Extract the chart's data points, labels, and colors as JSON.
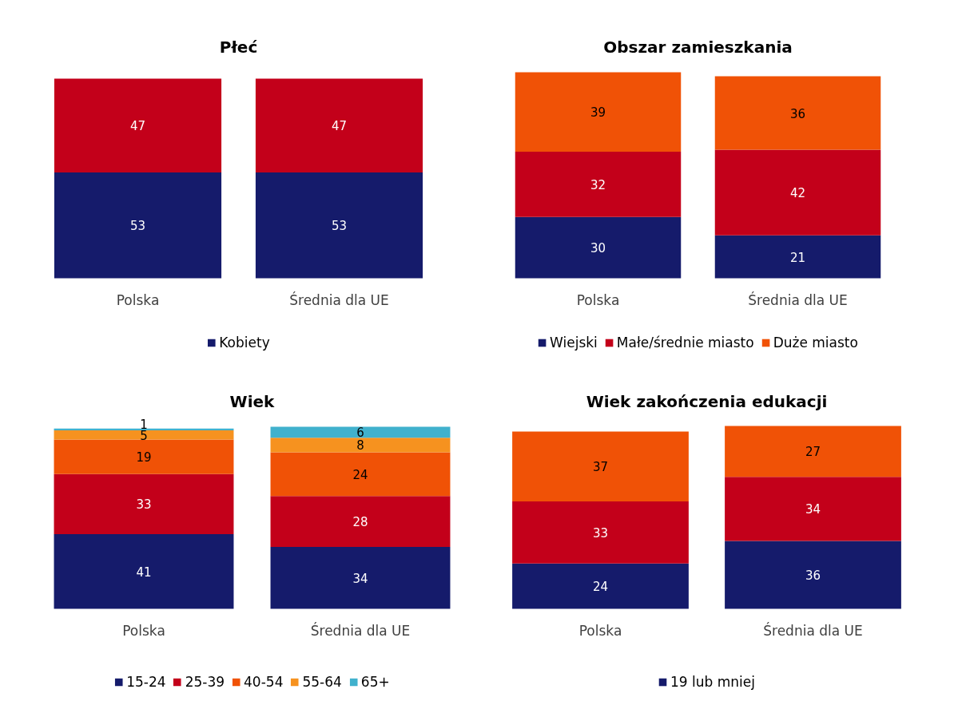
{
  "chart_data": [
    {
      "type": "bar",
      "title": "Płeć",
      "categories": [
        "Polska",
        "Średnia dla UE"
      ],
      "stacked": true,
      "data_labels": true,
      "legend": "bottom",
      "tick_labels": "x",
      "series": [
        {
          "name": "Kobiety",
          "color": "#151b6b",
          "values": [
            53,
            53
          ]
        },
        {
          "color": "#c3001a",
          "values": [
            47,
            47
          ]
        }
      ]
    },
    {
      "type": "bar",
      "title": "Obszar zamieszkania",
      "categories": [
        "Polska",
        "Średnia dla UE"
      ],
      "stacked": true,
      "data_labels": true,
      "legend": "bottom",
      "tick_labels": "x",
      "series": [
        {
          "name": "Wiejski",
          "color": "#151b6b",
          "values": [
            30,
            21
          ]
        },
        {
          "name": "Małe/średnie miasto",
          "color": "#c3001a",
          "values": [
            32,
            42
          ]
        },
        {
          "name": "Duże miasto",
          "color": "#f05206",
          "values": [
            39,
            36
          ]
        }
      ]
    },
    {
      "type": "bar",
      "title": "Wiek",
      "categories": [
        "Polska",
        "Średnia dla UE"
      ],
      "stacked": true,
      "data_labels": true,
      "legend": "bottom",
      "tick_labels": "x",
      "series": [
        {
          "name": "15-24",
          "color": "#151b6b",
          "values": [
            41,
            34
          ]
        },
        {
          "name": "25-39",
          "color": "#c3001a",
          "values": [
            33,
            28
          ]
        },
        {
          "name": "40-54",
          "color": "#f05206",
          "values": [
            19,
            24
          ]
        },
        {
          "name": "55-64",
          "color": "#f6921f",
          "values": [
            5,
            8
          ]
        },
        {
          "name": "65+",
          "color": "#40b1cd",
          "values": [
            1,
            6
          ]
        }
      ]
    },
    {
      "type": "bar",
      "title": "Wiek zakończenia edukacji",
      "categories": [
        "Polska",
        "Średnia dla UE"
      ],
      "stacked": true,
      "data_labels": true,
      "legend": "bottom",
      "tick_labels": "x",
      "series": [
        {
          "name": "19 lub mniej",
          "color": "#151b6b",
          "values": [
            24,
            36
          ]
        },
        {
          "color": "#c3001a",
          "values": [
            33,
            34
          ]
        },
        {
          "color": "#f05206",
          "values": [
            37,
            27
          ]
        }
      ]
    }
  ]
}
